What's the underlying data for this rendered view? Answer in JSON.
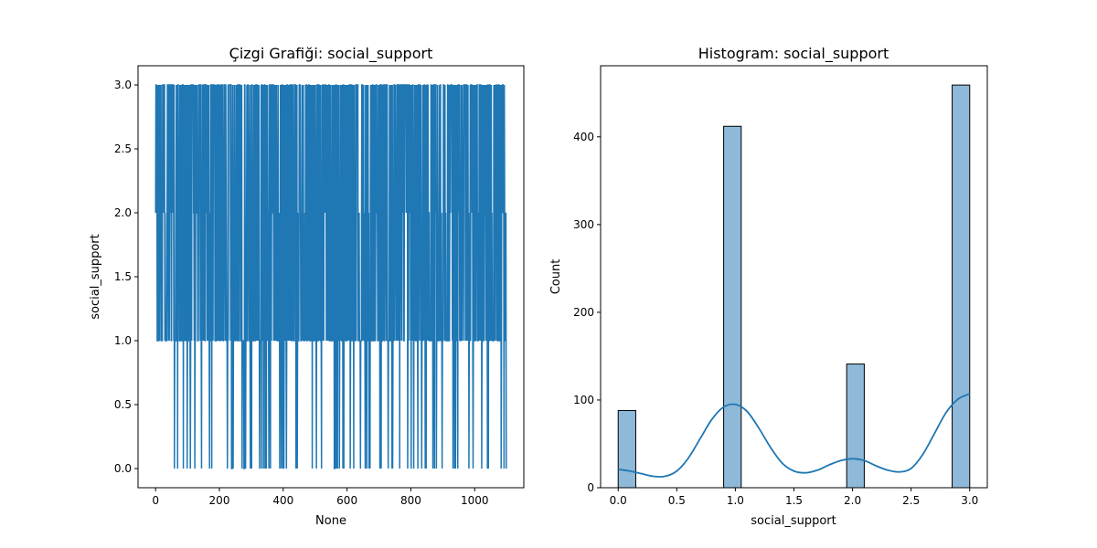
{
  "chart_data": [
    {
      "type": "line",
      "title": "Çizgi Grafiği: social_support",
      "xlabel": "None",
      "ylabel": "social_support",
      "xlim": [
        -55,
        1154
      ],
      "ylim": [
        -0.15,
        3.15
      ],
      "x_ticks": [
        0,
        200,
        400,
        600,
        800,
        1000
      ],
      "x_tick_labels": [
        "0",
        "200",
        "400",
        "600",
        "800",
        "1000"
      ],
      "y_ticks": [
        0.0,
        0.5,
        1.0,
        1.5,
        2.0,
        2.5,
        3.0
      ],
      "y_tick_labels": [
        "0.0",
        "0.5",
        "1.0",
        "1.5",
        "2.0",
        "2.5",
        "3.0"
      ],
      "series_summary": {
        "x_range": [
          0,
          1099
        ],
        "n_points": 1100,
        "levels": [
          0,
          1,
          2,
          3
        ],
        "level_counts": {
          "0": 88,
          "1": 412,
          "2": 141,
          "3": 459
        }
      },
      "color": "#1f77b4",
      "grid": false
    },
    {
      "type": "bar",
      "title": "Histogram: social_support",
      "xlabel": "social_support",
      "ylabel": "Count",
      "xlim": [
        -0.15,
        3.15
      ],
      "ylim": [
        0,
        481
      ],
      "x_ticks": [
        0.0,
        0.5,
        1.0,
        1.5,
        2.0,
        2.5,
        3.0
      ],
      "x_tick_labels": [
        "0.0",
        "0.5",
        "1.0",
        "1.5",
        "2.0",
        "2.5",
        "3.0"
      ],
      "y_ticks": [
        0,
        100,
        200,
        300,
        400
      ],
      "y_tick_labels": [
        "0",
        "100",
        "200",
        "300",
        "400"
      ],
      "bin_width": 0.15,
      "bins": [
        {
          "x0": 0.0,
          "x1": 0.15,
          "count": 88
        },
        {
          "x0": 0.9,
          "x1": 1.05,
          "count": 412
        },
        {
          "x0": 1.95,
          "x1": 2.1,
          "count": 141
        },
        {
          "x0": 2.85,
          "x1": 3.0,
          "count": 459
        }
      ],
      "kde": {
        "x": [
          0.0,
          0.1,
          0.2,
          0.3,
          0.4,
          0.5,
          0.6,
          0.7,
          0.8,
          0.9,
          1.0,
          1.1,
          1.2,
          1.3,
          1.4,
          1.5,
          1.6,
          1.7,
          1.8,
          1.9,
          2.0,
          2.1,
          2.2,
          2.3,
          2.4,
          2.5,
          2.6,
          2.7,
          2.8,
          2.9,
          3.0
        ],
        "y": [
          21,
          19,
          16,
          13,
          13,
          19,
          34,
          56,
          78,
          92,
          95,
          87,
          68,
          46,
          28,
          19,
          17,
          20,
          26,
          31,
          33,
          31,
          25,
          20,
          18,
          22,
          38,
          62,
          86,
          101,
          107
        ]
      },
      "bar_color": "#8fb9d9",
      "line_color": "#1f77b4",
      "grid": false
    }
  ]
}
